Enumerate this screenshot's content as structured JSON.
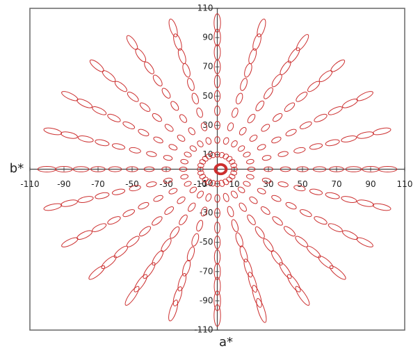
{
  "chart_data": {
    "type": "ellipse",
    "x_label": "a*",
    "y_label": "b*",
    "xlim": [
      -110,
      110
    ],
    "ylim": [
      -110,
      110
    ],
    "xticks": [
      -110,
      -90,
      -70,
      -50,
      -30,
      -10,
      10,
      30,
      50,
      70,
      90,
      110
    ],
    "yticks": [
      -110,
      -90,
      -70,
      -50,
      -30,
      -10,
      10,
      30,
      50,
      70,
      90,
      110
    ],
    "color": "#cc2f2f",
    "chroma": [
      10,
      20,
      30,
      40,
      50,
      60,
      70,
      80,
      90,
      100
    ],
    "center": {
      "a": 2,
      "b": 0,
      "radii": [
        2.6,
        3.0,
        3.4,
        3.8
      ]
    },
    "series": [
      {
        "hue": 0,
        "semi_major": [
          1.8,
          2.2,
          2.6,
          3.0,
          3.4,
          3.8,
          4.2,
          4.6,
          5.0,
          5.4
        ],
        "semi_minor": [
          1.5,
          1.5,
          1.6,
          1.6,
          1.7,
          1.7,
          1.8,
          1.8,
          1.9,
          1.9
        ]
      },
      {
        "hue": 15,
        "semi_major": [
          1.8,
          2.2,
          2.6,
          3.0,
          3.4,
          3.8,
          4.2,
          4.6,
          5.0,
          5.4
        ],
        "semi_minor": [
          1.5,
          1.5,
          1.6,
          1.6,
          1.7,
          1.7,
          1.8,
          1.8,
          1.9,
          1.9
        ]
      },
      {
        "hue": 30,
        "semi_major": [
          1.8,
          2.2,
          2.6,
          3.0,
          3.4,
          3.8,
          4.2,
          4.6,
          5.0,
          5.4
        ],
        "semi_minor": [
          1.5,
          1.5,
          1.6,
          1.6,
          1.7,
          1.7,
          1.8,
          1.8,
          1.9,
          1.9
        ]
      },
      {
        "hue": 45,
        "semi_major": [
          1.8,
          2.2,
          2.6,
          3.0,
          3.4,
          3.8,
          4.2,
          4.6,
          5.0,
          5.4
        ],
        "semi_minor": [
          1.5,
          1.5,
          1.6,
          1.6,
          1.7,
          1.7,
          1.8,
          1.8,
          1.9,
          1.9
        ]
      },
      {
        "hue": 60,
        "semi_major": [
          1.8,
          2.3,
          2.8,
          3.3,
          3.8,
          4.3,
          4.8,
          5.3,
          5.8,
          6.3
        ],
        "semi_minor": [
          1.5,
          1.5,
          1.6,
          1.6,
          1.7,
          1.7,
          1.8,
          1.8,
          1.9,
          1.9
        ]
      },
      {
        "hue": 75,
        "semi_major": [
          1.8,
          2.3,
          2.8,
          3.3,
          3.8,
          4.3,
          4.8,
          5.3,
          5.8,
          6.3
        ],
        "semi_minor": [
          1.5,
          1.5,
          1.6,
          1.6,
          1.7,
          1.7,
          1.8,
          1.8,
          1.9,
          1.9
        ]
      },
      {
        "hue": 90,
        "semi_major": [
          1.8,
          2.3,
          2.8,
          3.3,
          3.8,
          4.3,
          4.8,
          5.3,
          5.8,
          6.3
        ],
        "semi_minor": [
          1.5,
          1.5,
          1.6,
          1.6,
          1.7,
          1.7,
          1.8,
          1.8,
          1.9,
          1.9
        ]
      },
      {
        "hue": 105,
        "semi_major": [
          1.8,
          2.3,
          2.8,
          3.3,
          3.8,
          4.3,
          4.8,
          5.3,
          5.8,
          6.3
        ],
        "semi_minor": [
          1.5,
          1.5,
          1.6,
          1.6,
          1.7,
          1.7,
          1.8,
          1.8,
          1.9,
          1.9
        ]
      },
      {
        "hue": 120,
        "semi_major": [
          1.8,
          2.2,
          2.6,
          3.0,
          3.4,
          3.8,
          4.2,
          4.6,
          5.0,
          5.4
        ],
        "semi_minor": [
          1.5,
          1.5,
          1.6,
          1.6,
          1.7,
          1.7,
          1.8,
          1.8,
          1.9,
          1.9
        ]
      },
      {
        "hue": 135,
        "semi_major": [
          1.8,
          2.2,
          2.6,
          3.0,
          3.4,
          3.8,
          4.2,
          4.6,
          5.0,
          5.4
        ],
        "semi_minor": [
          1.5,
          1.5,
          1.6,
          1.6,
          1.7,
          1.7,
          1.8,
          1.8,
          1.9,
          1.9
        ]
      },
      {
        "hue": 150,
        "semi_major": [
          1.8,
          2.2,
          2.6,
          3.0,
          3.4,
          3.8,
          4.2,
          4.6,
          5.0,
          5.4
        ],
        "semi_minor": [
          1.5,
          1.5,
          1.6,
          1.6,
          1.7,
          1.7,
          1.8,
          1.8,
          1.9,
          1.9
        ]
      },
      {
        "hue": 165,
        "semi_major": [
          1.8,
          2.2,
          2.6,
          3.0,
          3.4,
          3.8,
          4.2,
          4.6,
          5.0,
          5.4
        ],
        "semi_minor": [
          1.5,
          1.5,
          1.6,
          1.6,
          1.7,
          1.7,
          1.8,
          1.8,
          1.9,
          1.9
        ]
      },
      {
        "hue": 180,
        "semi_major": [
          1.8,
          2.2,
          2.6,
          3.0,
          3.4,
          3.8,
          4.2,
          4.6,
          5.0,
          5.4
        ],
        "semi_minor": [
          1.5,
          1.5,
          1.6,
          1.6,
          1.7,
          1.7,
          1.8,
          1.8,
          1.9,
          1.9
        ]
      },
      {
        "hue": 195,
        "semi_major": [
          1.8,
          2.2,
          2.6,
          3.0,
          3.4,
          3.8,
          4.2,
          4.6,
          5.0,
          5.4
        ],
        "semi_minor": [
          1.5,
          1.5,
          1.6,
          1.6,
          1.7,
          1.7,
          1.8,
          1.8,
          1.9,
          1.9
        ]
      },
      {
        "hue": 210,
        "semi_major": [
          1.8,
          2.2,
          2.6,
          3.0,
          3.4,
          3.8,
          4.2,
          4.6,
          5.0,
          5.4
        ],
        "semi_minor": [
          1.5,
          1.5,
          1.6,
          1.6,
          1.7,
          1.7,
          1.8,
          1.8,
          1.9,
          1.9
        ]
      },
      {
        "hue": 225,
        "semi_major": [
          1.8,
          2.3,
          2.8,
          3.3,
          3.8,
          4.3,
          4.8,
          5.3,
          5.8,
          6.3
        ],
        "semi_minor": [
          1.5,
          1.5,
          1.6,
          1.6,
          1.7,
          1.7,
          1.8,
          1.8,
          1.9,
          1.9
        ]
      },
      {
        "hue": 240,
        "semi_major": [
          2.0,
          2.6,
          3.2,
          3.8,
          4.4,
          5.0,
          5.6,
          6.2,
          6.8,
          7.4
        ],
        "semi_minor": [
          1.5,
          1.5,
          1.6,
          1.6,
          1.7,
          1.7,
          1.8,
          1.8,
          1.9,
          1.9
        ]
      },
      {
        "hue": 255,
        "semi_major": [
          2.0,
          2.6,
          3.2,
          3.8,
          4.4,
          5.0,
          5.6,
          6.2,
          6.8,
          7.4
        ],
        "semi_minor": [
          1.5,
          1.5,
          1.6,
          1.6,
          1.7,
          1.7,
          1.8,
          1.8,
          1.9,
          1.9
        ]
      },
      {
        "hue": 270,
        "semi_major": [
          2.0,
          2.6,
          3.2,
          3.8,
          4.4,
          5.0,
          5.6,
          6.2,
          6.8,
          7.4
        ],
        "semi_minor": [
          1.5,
          1.5,
          1.6,
          1.6,
          1.7,
          1.7,
          1.8,
          1.8,
          1.9,
          1.9
        ]
      },
      {
        "hue": 285,
        "semi_major": [
          2.2,
          2.9,
          3.6,
          4.3,
          5.0,
          5.7,
          6.4,
          7.1,
          7.8,
          8.5
        ],
        "semi_minor": [
          1.5,
          1.5,
          1.6,
          1.6,
          1.7,
          1.7,
          1.8,
          1.8,
          1.9,
          1.9
        ]
      },
      {
        "hue": 300,
        "semi_major": [
          2.0,
          2.6,
          3.2,
          3.8,
          4.4,
          5.0,
          5.6,
          6.2,
          6.8,
          7.4
        ],
        "semi_minor": [
          1.5,
          1.5,
          1.6,
          1.6,
          1.7,
          1.7,
          1.8,
          1.8,
          1.9,
          1.9
        ]
      },
      {
        "hue": 315,
        "semi_major": [
          1.8,
          2.3,
          2.8,
          3.3,
          3.8,
          4.3,
          4.8,
          5.3,
          5.8,
          6.3
        ],
        "semi_minor": [
          1.5,
          1.5,
          1.6,
          1.6,
          1.7,
          1.7,
          1.8,
          1.8,
          1.9,
          1.9
        ]
      },
      {
        "hue": 330,
        "semi_major": [
          1.8,
          2.2,
          2.6,
          3.0,
          3.4,
          3.8,
          4.2,
          4.6,
          5.0,
          5.4
        ],
        "semi_minor": [
          1.5,
          1.5,
          1.6,
          1.6,
          1.7,
          1.7,
          1.8,
          1.8,
          1.9,
          1.9
        ]
      },
      {
        "hue": 345,
        "semi_major": [
          1.8,
          2.2,
          2.6,
          3.0,
          3.4,
          3.8,
          4.2,
          4.6,
          5.0,
          5.4
        ],
        "semi_minor": [
          1.5,
          1.5,
          1.6,
          1.6,
          1.7,
          1.7,
          1.8,
          1.8,
          1.9,
          1.9
        ]
      }
    ]
  }
}
